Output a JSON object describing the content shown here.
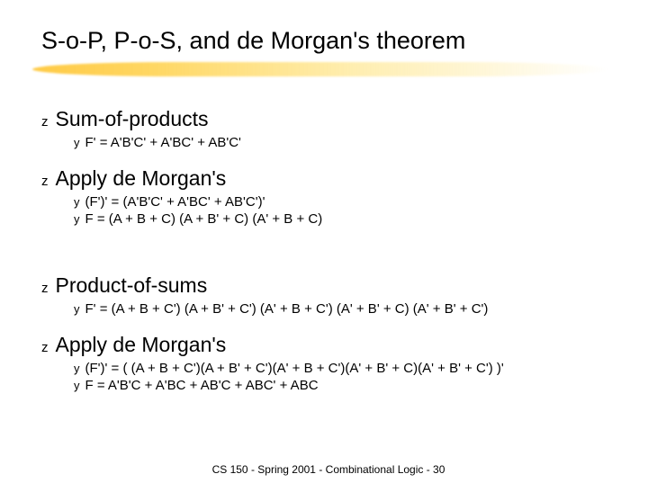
{
  "title": "S-o-P, P-o-S, and de Morgan's theorem",
  "bullets": {
    "z_glyph": "z",
    "y_glyph": "y"
  },
  "sections": [
    {
      "head": "Sum-of-products",
      "subs": [
        "F' = A'B'C' + A'BC' + AB'C'"
      ]
    },
    {
      "head": "Apply de Morgan's",
      "subs": [
        "(F')' = (A'B'C' + A'BC' + AB'C')'",
        "F = (A + B + C) (A + B' + C) (A' + B + C)"
      ]
    },
    {
      "head": "Product-of-sums",
      "subs": [
        "F' = (A + B + C') (A + B' + C') (A' + B + C') (A' + B' + C) (A' + B' + C')"
      ]
    },
    {
      "head": "Apply de Morgan's",
      "subs": [
        "(F')' = ( (A + B + C')(A + B' + C')(A' + B + C')(A' + B' + C)(A' + B' + C') )'",
        "F = A'B'C + A'BC + AB'C + ABC' + ABC"
      ]
    }
  ],
  "gap_after_section_index": 1,
  "footer": "CS 150 - Spring  2001 - Combinational Logic - 30",
  "colors": {
    "text": "#000000",
    "background": "#ffffff",
    "underline_start": "#ffc83c",
    "underline_end": "#ffffff"
  }
}
